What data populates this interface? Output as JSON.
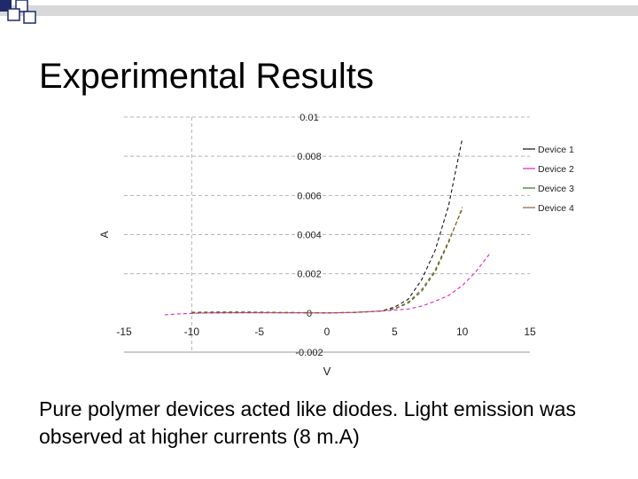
{
  "slide": {
    "title": "Experimental Results",
    "caption": "Pure polymer devices acted like diodes. Light emission was observed at higher currents (8 m.A)"
  },
  "decoration": {
    "bar_color": "#d8d8d8",
    "square_color": "#1f2a6b"
  },
  "chart_data": {
    "type": "line",
    "title": "",
    "xlabel": "V",
    "ylabel": "A",
    "xlim": [
      -15,
      15
    ],
    "ylim": [
      -0.002,
      0.01
    ],
    "xticks": [
      -15,
      -10,
      -5,
      0,
      5,
      10,
      15
    ],
    "xtick_labels": [
      "-15",
      "-10",
      "-5",
      "0",
      "5",
      "10",
      "15"
    ],
    "yticks": [
      -0.002,
      0,
      0.002,
      0.004,
      0.006,
      0.008,
      0.01
    ],
    "ytick_labels": [
      "-0.002",
      "0",
      "0.002",
      "0.004",
      "0.006",
      "0.008",
      "0.01"
    ],
    "grid": "dashed horizontal",
    "legend_position": "right",
    "series": [
      {
        "name": "Device 1",
        "color": "#111111",
        "dash": "4,3",
        "x": [
          -10,
          -8,
          -6,
          -4,
          -2,
          0,
          2,
          4,
          5,
          6,
          7,
          8,
          9,
          9.5,
          10
        ],
        "y": [
          3e-05,
          4e-05,
          4e-05,
          3e-05,
          2e-05,
          1e-05,
          3e-05,
          0.0001,
          0.0003,
          0.0007,
          0.0017,
          0.0032,
          0.0055,
          0.0072,
          0.0089
        ]
      },
      {
        "name": "Device 2",
        "color": "#e020c0",
        "dash": "4,3",
        "x": [
          -12,
          -11,
          -10,
          -9,
          -8,
          -6,
          -4,
          -2,
          0,
          2,
          4,
          6,
          7,
          8,
          9,
          10,
          11,
          12
        ],
        "y": [
          -0.0001,
          -5e-05,
          -2e-05,
          0.0,
          1e-05,
          1e-05,
          1e-05,
          1e-05,
          0.0,
          3e-05,
          0.0001,
          0.0002,
          0.00035,
          0.0006,
          0.0009,
          0.0014,
          0.0021,
          0.003
        ]
      },
      {
        "name": "Device 3",
        "color": "#2a7a2a",
        "dash": "4,3",
        "x": [
          -10,
          -8,
          -6,
          -4,
          -2,
          0,
          2,
          4,
          5,
          6,
          7,
          8,
          9,
          10
        ],
        "y": [
          0.0,
          1e-05,
          1e-05,
          1e-05,
          1e-05,
          0.0,
          2e-05,
          0.0001,
          0.0002,
          0.0005,
          0.0011,
          0.0021,
          0.0036,
          0.0054
        ]
      },
      {
        "name": "Device 4",
        "color": "#a05a2a",
        "dash": "4,3",
        "x": [
          -10,
          -8,
          -6,
          -4,
          -2,
          0,
          2,
          4,
          5,
          6,
          7,
          8,
          9,
          10
        ],
        "y": [
          0.0,
          0.0,
          1e-05,
          1e-05,
          0.0,
          0.0,
          2e-05,
          0.0001,
          0.00022,
          0.00055,
          0.0012,
          0.0022,
          0.0037,
          0.0053
        ]
      }
    ]
  }
}
